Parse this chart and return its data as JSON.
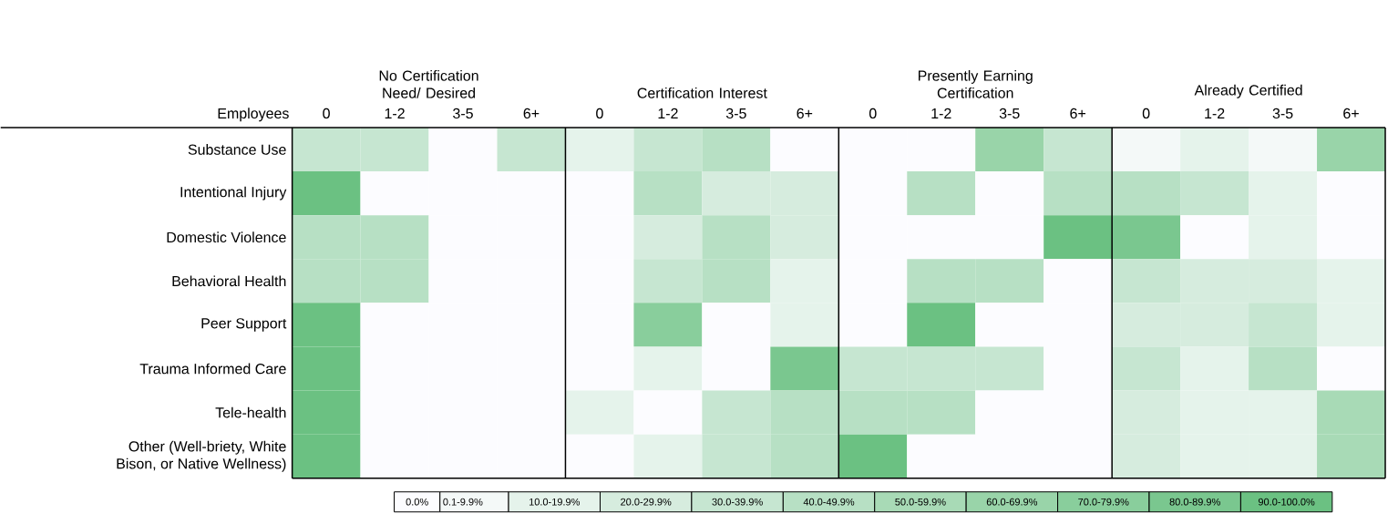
{
  "chart_data": {
    "type": "heatmap",
    "xlabel": "Employees",
    "annotations": [
      "No Certification Need/ Desired",
      "Certification Interest",
      "Presently Earning Certification",
      "Already Certified"
    ],
    "categories": [
      "0",
      "1-2",
      "3-5",
      "6+",
      "0",
      "1-2",
      "3-5",
      "6+",
      "0",
      "1-2",
      "3-5",
      "6+",
      "0",
      "1-2",
      "3-5",
      "6+"
    ],
    "y_categories": [
      "Substance Use",
      "Intentional Injury",
      "Domestic Violence",
      "Behavioral Health",
      "Peer Support",
      "Trauma Informed Care",
      "Tele-health",
      "Other (Well-briety, White Bison, or Native Wellness)"
    ],
    "cells": [
      [
        35,
        35,
        0,
        35,
        15,
        35,
        45,
        0,
        0,
        0,
        65,
        35,
        5,
        15,
        5,
        65
      ],
      [
        95,
        0,
        0,
        0,
        0,
        45,
        25,
        25,
        0,
        45,
        0,
        45,
        45,
        35,
        15,
        0
      ],
      [
        45,
        45,
        0,
        0,
        0,
        25,
        45,
        25,
        0,
        0,
        0,
        95,
        85,
        0,
        15,
        0
      ],
      [
        45,
        45,
        0,
        0,
        0,
        35,
        45,
        15,
        0,
        45,
        45,
        0,
        35,
        25,
        25,
        15
      ],
      [
        95,
        0,
        0,
        0,
        0,
        75,
        0,
        15,
        0,
        95,
        0,
        0,
        25,
        25,
        35,
        15
      ],
      [
        95,
        0,
        0,
        0,
        0,
        15,
        0,
        85,
        35,
        35,
        35,
        0,
        35,
        15,
        45,
        0
      ],
      [
        95,
        0,
        0,
        0,
        15,
        0,
        35,
        45,
        45,
        45,
        0,
        0,
        25,
        15,
        15,
        55
      ],
      [
        95,
        0,
        0,
        0,
        0,
        15,
        35,
        45,
        95,
        0,
        0,
        0,
        25,
        15,
        15,
        55
      ]
    ],
    "clim": [
      0,
      100
    ],
    "cticks": [
      {
        "value": 0,
        "label": "0.0%"
      },
      {
        "value": 5,
        "label": "0.1-9.9%"
      },
      {
        "value": 15,
        "label": "10.0-19.9%"
      },
      {
        "value": 25,
        "label": "20.0-29.9%"
      },
      {
        "value": 35,
        "label": "30.0-39.9%"
      },
      {
        "value": 45,
        "label": "40.0-49.9%"
      },
      {
        "value": 55,
        "label": "50.0-59.9%"
      },
      {
        "value": 65,
        "label": "60.0-69.9%"
      },
      {
        "value": 75,
        "label": "70.0-79.9%"
      },
      {
        "value": 85,
        "label": "80.0-89.9%"
      },
      {
        "value": 95,
        "label": "90.0-100.0%"
      }
    ]
  }
}
